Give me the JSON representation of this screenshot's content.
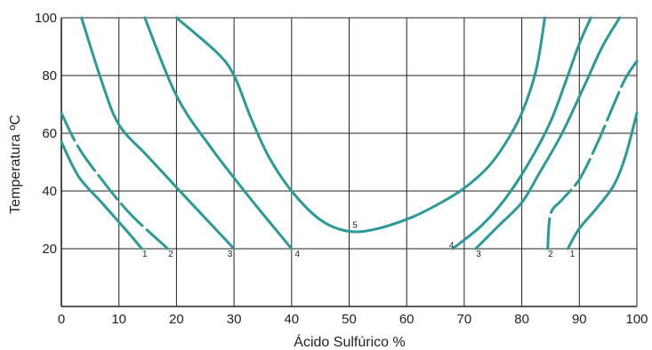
{
  "chart_data": {
    "type": "line",
    "xlabel": "Ácido Sulfúrico %",
    "ylabel": "Temperatura ºC",
    "xlim": [
      0,
      100
    ],
    "ylim": [
      0,
      100
    ],
    "x_ticks": [
      "0",
      "10",
      "20",
      "30",
      "40",
      "50",
      "60",
      "70",
      "80",
      "90",
      "100"
    ],
    "y_ticks": [
      "20",
      "40",
      "60",
      "80",
      "100"
    ],
    "grid": true,
    "line_color": "#2a9a98",
    "series": [
      {
        "label": "1",
        "label_at": [
          14.5,
          18
        ],
        "dashed": false,
        "points": [
          [
            0,
            57
          ],
          [
            3,
            45
          ],
          [
            7,
            36
          ],
          [
            11,
            27
          ],
          [
            14,
            20
          ]
        ]
      },
      {
        "label": "2",
        "label_at": [
          19,
          18
        ],
        "dashed": true,
        "points": [
          [
            0,
            67
          ],
          [
            3,
            55
          ],
          [
            7,
            44
          ],
          [
            12,
            32
          ],
          [
            18.5,
            20
          ]
        ]
      },
      {
        "label": "3",
        "label_at": [
          29.3,
          18
        ],
        "dashed": false,
        "points": [
          [
            3.5,
            100
          ],
          [
            7,
            78
          ],
          [
            10,
            63
          ],
          [
            15,
            52
          ],
          [
            22,
            37
          ],
          [
            30,
            20
          ]
        ]
      },
      {
        "label": "4",
        "label_at": [
          41,
          18
        ],
        "dashed": false,
        "points": [
          [
            14.5,
            100
          ],
          [
            20,
            73
          ],
          [
            26,
            55
          ],
          [
            33,
            37
          ],
          [
            40,
            20
          ]
        ]
      },
      {
        "label": "5",
        "label_at": [
          51,
          28
        ],
        "dashed": false,
        "points": [
          [
            20,
            100
          ],
          [
            27,
            88
          ],
          [
            30,
            80
          ],
          [
            33,
            65
          ],
          [
            36,
            52
          ],
          [
            40,
            40
          ],
          [
            45,
            30
          ],
          [
            50,
            26
          ],
          [
            55,
            27
          ],
          [
            61,
            31
          ],
          [
            66,
            36
          ],
          [
            70,
            41
          ],
          [
            74,
            48
          ],
          [
            77,
            56
          ],
          [
            80,
            67
          ],
          [
            82.5,
            82
          ],
          [
            84,
            100
          ]
        ]
      },
      {
        "label": "4",
        "label_at": [
          67.8,
          21
        ],
        "dashed": false,
        "points": [
          [
            68,
            20
          ],
          [
            73,
            28
          ],
          [
            77,
            37
          ],
          [
            81,
            49
          ],
          [
            85,
            64
          ],
          [
            88,
            80
          ],
          [
            90,
            91
          ],
          [
            92,
            100
          ]
        ]
      },
      {
        "label": "3",
        "label_at": [
          72.5,
          18
        ],
        "dashed": false,
        "points": [
          [
            72,
            20
          ],
          [
            76,
            28
          ],
          [
            80,
            36
          ],
          [
            83,
            46
          ],
          [
            87,
            60
          ],
          [
            91,
            77
          ],
          [
            94,
            90
          ],
          [
            97,
            100
          ]
        ]
      },
      {
        "label": "2",
        "label_at": [
          85,
          18
        ],
        "dashed": true,
        "points": [
          [
            84.5,
            20
          ],
          [
            85,
            32
          ],
          [
            87,
            37
          ],
          [
            90,
            44
          ],
          [
            93,
            56
          ],
          [
            96,
            70
          ],
          [
            98,
            79
          ],
          [
            100,
            85
          ]
        ]
      },
      {
        "label": "1",
        "label_at": [
          88.8,
          18
        ],
        "dashed": false,
        "points": [
          [
            88,
            20
          ],
          [
            90,
            27
          ],
          [
            93,
            34
          ],
          [
            96,
            42
          ],
          [
            98,
            52
          ],
          [
            100,
            67
          ]
        ]
      }
    ]
  }
}
